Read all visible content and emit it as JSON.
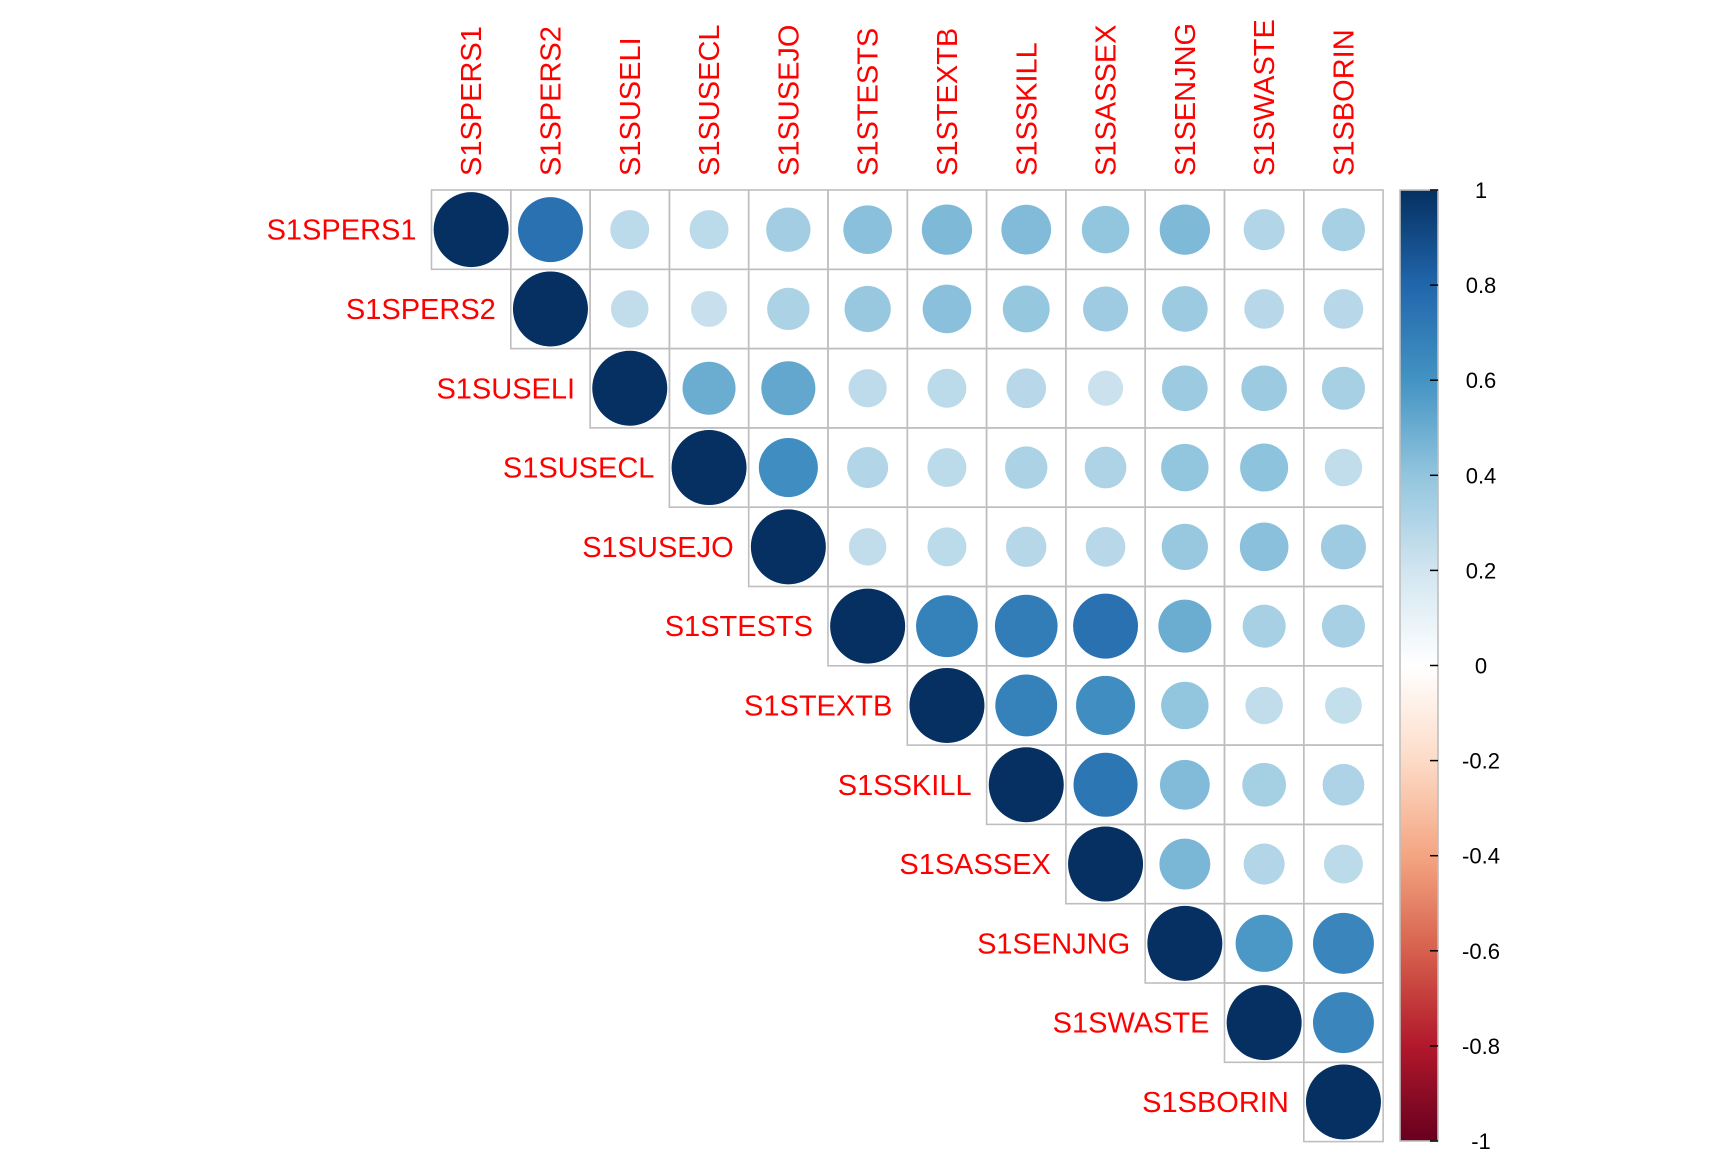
{
  "chart_data": {
    "type": "heatmap",
    "plot_style": "correlation-matrix-upper-circles",
    "variables": [
      "S1SPERS1",
      "S1SPERS2",
      "S1SUSELI",
      "S1SUSECL",
      "S1SUSEJO",
      "S1STESTS",
      "S1STEXTB",
      "S1SSKILL",
      "S1SASSEX",
      "S1SENJNG",
      "S1SWASTE",
      "S1SBORIN"
    ],
    "matrix": [
      [
        1.0,
        0.75,
        0.27,
        0.27,
        0.35,
        0.42,
        0.45,
        0.44,
        0.4,
        0.45,
        0.3,
        0.33
      ],
      [
        null,
        1.0,
        0.25,
        0.23,
        0.32,
        0.38,
        0.42,
        0.39,
        0.36,
        0.37,
        0.28,
        0.28
      ],
      [
        null,
        null,
        1.0,
        0.5,
        0.52,
        0.26,
        0.27,
        0.28,
        0.22,
        0.37,
        0.37,
        0.33
      ],
      [
        null,
        null,
        null,
        1.0,
        0.62,
        0.3,
        0.27,
        0.32,
        0.31,
        0.4,
        0.41,
        0.25
      ],
      [
        null,
        null,
        null,
        null,
        1.0,
        0.25,
        0.27,
        0.29,
        0.28,
        0.38,
        0.42,
        0.36
      ],
      [
        null,
        null,
        null,
        null,
        null,
        1.0,
        0.68,
        0.7,
        0.75,
        0.5,
        0.33,
        0.33
      ],
      [
        null,
        null,
        null,
        null,
        null,
        null,
        1.0,
        0.68,
        0.62,
        0.4,
        0.25,
        0.24
      ],
      [
        null,
        null,
        null,
        null,
        null,
        null,
        null,
        1.0,
        0.73,
        0.44,
        0.34,
        0.31
      ],
      [
        null,
        null,
        null,
        null,
        null,
        null,
        null,
        null,
        1.0,
        0.46,
        0.3,
        0.27
      ],
      [
        null,
        null,
        null,
        null,
        null,
        null,
        null,
        null,
        null,
        1.0,
        0.58,
        0.66
      ],
      [
        null,
        null,
        null,
        null,
        null,
        null,
        null,
        null,
        null,
        null,
        1.0,
        0.66
      ],
      [
        null,
        null,
        null,
        null,
        null,
        null,
        null,
        null,
        null,
        null,
        null,
        1.0
      ]
    ],
    "colorbar": {
      "range": [
        -1,
        1
      ],
      "tick_labels": [
        "1",
        "0.8",
        "0.6",
        "0.4",
        "0.2",
        "0",
        "-0.2",
        "-0.4",
        "-0.6",
        "-0.8",
        "-1"
      ],
      "tick_values": [
        1,
        0.8,
        0.6,
        0.4,
        0.2,
        0,
        -0.2,
        -0.4,
        -0.6,
        -0.8,
        -1
      ],
      "placement": "right"
    },
    "colors": {
      "label_text": "#ff0000",
      "grid_line": "#bebebe",
      "palette": [
        "#67001f",
        "#b2182b",
        "#d6604d",
        "#f4a582",
        "#fddbc7",
        "#ffffff",
        "#d1e5f0",
        "#92c5de",
        "#4393c3",
        "#2166ac",
        "#053061"
      ]
    },
    "title": "",
    "xlabel": "",
    "ylabel": ""
  }
}
